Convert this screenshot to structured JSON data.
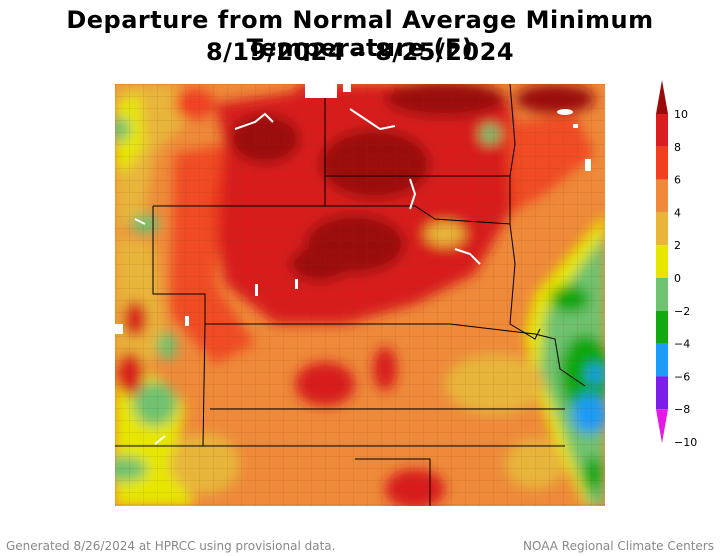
{
  "title": {
    "line1": "Departure from Normal Average Minimum Temperature (F)",
    "line2": "8/19/2024 – 8/25/2024"
  },
  "legend": {
    "ticks": [
      "10",
      "8",
      "6",
      "4",
      "2",
      "0",
      "−2",
      "−4",
      "−6",
      "−8",
      "−10"
    ],
    "colors": {
      "above_8": "#9b0a0a",
      "6_to_8": "#d81e1e",
      "4_to_6": "#f04020",
      "2_to_4": "#ee8a3a",
      "0_to_2": "#e8b53a",
      "neg2_to_0": "#e6e600",
      "neg4_to_neg2": "#6fc26f",
      "neg6_to_neg4": "#11a811",
      "neg8_to_neg6": "#1e9bf5",
      "neg10_to_neg8": "#7a1ee8",
      "below_neg10": "#e619e6"
    }
  },
  "footer": {
    "left": "Generated 8/26/2024 at HPRCC using provisional data.",
    "right": "NOAA Regional Climate Centers"
  }
}
